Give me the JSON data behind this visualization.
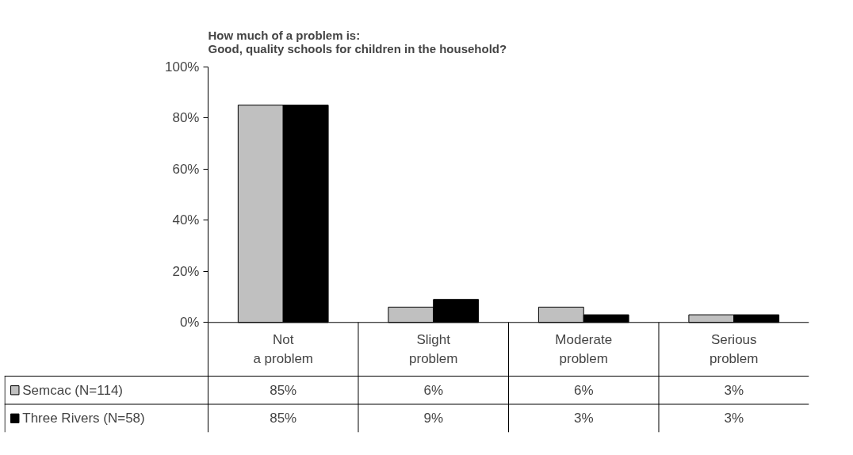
{
  "chart_data": {
    "type": "bar",
    "title": "How much of a problem is:\nGood, quality schools for children in the household?",
    "categories": [
      "Not\na problem",
      "Slight\nproblem",
      "Moderate\nproblem",
      "Serious\nproblem"
    ],
    "series": [
      {
        "name": "Semcac (N=114)",
        "color": "#c0c0c0",
        "values": [
          85,
          6,
          6,
          3
        ],
        "value_labels": [
          "85%",
          "6%",
          "6%",
          "3%"
        ]
      },
      {
        "name": "Three Rivers (N=58)",
        "color": "#000000",
        "values": [
          85,
          9,
          3,
          3
        ],
        "value_labels": [
          "85%",
          "9%",
          "3%",
          "3%"
        ]
      }
    ],
    "ylim": [
      0,
      100
    ],
    "yticks": [
      {
        "value": 0,
        "label": "0%"
      },
      {
        "value": 20,
        "label": "20%"
      },
      {
        "value": 40,
        "label": "40%"
      },
      {
        "value": 60,
        "label": "60%"
      },
      {
        "value": 80,
        "label": "80%"
      },
      {
        "value": 100,
        "label": "100%"
      }
    ],
    "grid": false,
    "legend": "bottom left"
  }
}
